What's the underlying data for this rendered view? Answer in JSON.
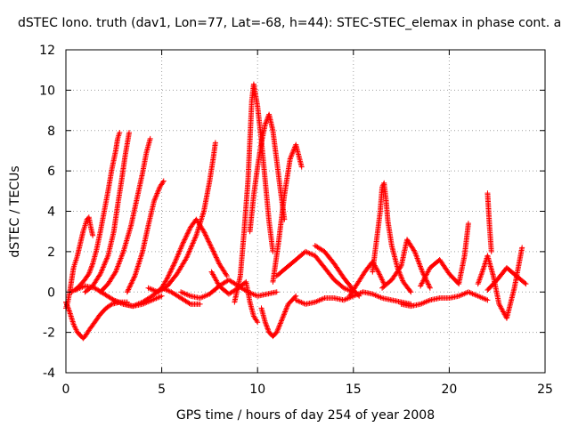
{
  "chart_data": {
    "type": "scatter",
    "title": "dSTEC Iono. truth (dav1, Lon=77, Lat=-68, h=44): STEC-STEC_elemax in phase cont. a",
    "xlabel": "GPS time / hours of day 254 of year 2008",
    "ylabel": "dSTEC  / TECUs",
    "xlim": [
      0,
      25
    ],
    "ylim": [
      -4,
      12
    ],
    "xticks": [
      0,
      5,
      10,
      15,
      20,
      25
    ],
    "yticks": [
      -4,
      -2,
      0,
      2,
      4,
      6,
      8,
      10,
      12
    ],
    "grid": true,
    "legend": "none",
    "marker": "plus",
    "series_color": "#ff0000",
    "tracks": [
      {
        "x": [
          0.0,
          0.2,
          0.4,
          0.6,
          0.8,
          0.9,
          1.0,
          1.2,
          1.5,
          1.8,
          2.1,
          2.4,
          2.8,
          3.2
        ],
        "y": [
          -0.5,
          -1.0,
          -1.6,
          -2.0,
          -2.2,
          -2.3,
          -2.2,
          -1.9,
          -1.5,
          -1.1,
          -0.8,
          -0.6,
          -0.5,
          -0.5
        ]
      },
      {
        "x": [
          0.0,
          0.1,
          0.2,
          0.3,
          0.4,
          0.5,
          0.6,
          0.7,
          0.8,
          0.9,
          1.0,
          1.1,
          1.2,
          1.3,
          1.4
        ],
        "y": [
          -0.8,
          -0.5,
          0.0,
          0.6,
          1.2,
          1.5,
          1.8,
          2.2,
          2.6,
          3.0,
          3.3,
          3.6,
          3.7,
          3.2,
          2.8
        ]
      },
      {
        "x": [
          0.3,
          0.6,
          0.9,
          1.2,
          1.4,
          1.6,
          1.8,
          2.0,
          2.2,
          2.4,
          2.6,
          2.7,
          2.8
        ],
        "y": [
          0.0,
          0.2,
          0.5,
          0.9,
          1.4,
          2.1,
          3.0,
          4.0,
          5.0,
          6.1,
          7.0,
          7.6,
          7.9
        ]
      },
      {
        "x": [
          1.0,
          1.4,
          1.8,
          2.2,
          2.5,
          2.7,
          2.9,
          3.1,
          3.3
        ],
        "y": [
          0.0,
          0.3,
          0.9,
          1.8,
          3.0,
          4.3,
          5.5,
          6.8,
          7.9
        ]
      },
      {
        "x": [
          1.8,
          2.2,
          2.6,
          3.0,
          3.4,
          3.7,
          4.0,
          4.2,
          4.4
        ],
        "y": [
          0.0,
          0.4,
          1.0,
          2.0,
          3.3,
          4.6,
          5.9,
          6.9,
          7.6
        ]
      },
      {
        "x": [
          0.5,
          1.0,
          1.5,
          2.0,
          2.5,
          3.0,
          3.5,
          4.0,
          4.5,
          5.0
        ],
        "y": [
          0.1,
          0.3,
          0.2,
          -0.1,
          -0.4,
          -0.6,
          -0.7,
          -0.6,
          -0.4,
          -0.2
        ]
      },
      {
        "x": [
          3.2,
          3.6,
          4.0,
          4.3,
          4.6,
          4.9,
          5.1
        ],
        "y": [
          0.0,
          0.8,
          2.0,
          3.3,
          4.5,
          5.2,
          5.5
        ]
      },
      {
        "x": [
          2.5,
          3.0,
          3.5,
          4.0,
          4.5,
          5.0,
          5.5,
          6.0,
          6.5,
          7.0
        ],
        "y": [
          -0.4,
          -0.6,
          -0.7,
          -0.5,
          -0.2,
          0.2,
          0.0,
          -0.3,
          -0.6,
          -0.6
        ]
      },
      {
        "x": [
          4.3,
          4.8,
          5.3,
          5.8,
          6.3,
          6.8,
          7.2,
          7.5,
          7.7,
          7.8
        ],
        "y": [
          0.2,
          0.0,
          0.3,
          0.9,
          1.7,
          2.8,
          4.0,
          5.5,
          6.7,
          7.4
        ]
      },
      {
        "x": [
          5.0,
          5.3,
          5.7,
          6.1,
          6.5,
          6.8,
          7.2,
          7.6,
          8.0,
          8.4
        ],
        "y": [
          0.2,
          0.7,
          1.5,
          2.4,
          3.2,
          3.6,
          3.0,
          2.2,
          1.4,
          0.8
        ]
      },
      {
        "x": [
          6.0,
          6.5,
          7.0,
          7.5,
          8.0,
          8.5,
          9.0,
          9.5,
          10.0,
          10.5,
          11.0
        ],
        "y": [
          0.0,
          -0.2,
          -0.3,
          -0.1,
          0.3,
          0.6,
          0.3,
          0.0,
          -0.2,
          -0.1,
          0.0
        ]
      },
      {
        "x": [
          7.6,
          8.0,
          8.5,
          9.0,
          9.4,
          9.6,
          9.8,
          10.0
        ],
        "y": [
          1.0,
          0.3,
          -0.1,
          0.2,
          0.5,
          -0.5,
          -1.2,
          -1.5
        ]
      },
      {
        "x": [
          8.8,
          9.1,
          9.3,
          9.5,
          9.6,
          9.7,
          9.8,
          10.0,
          10.2,
          10.4,
          10.6,
          10.8
        ],
        "y": [
          -0.5,
          0.8,
          3.0,
          5.5,
          7.5,
          9.5,
          10.3,
          9.2,
          7.5,
          5.5,
          3.5,
          2.0
        ]
      },
      {
        "x": [
          9.6,
          9.8,
          10.0,
          10.2,
          10.4,
          10.6,
          10.8,
          11.0,
          11.2,
          11.4
        ],
        "y": [
          3.0,
          4.8,
          6.2,
          7.4,
          8.3,
          8.8,
          8.0,
          6.5,
          5.0,
          3.6
        ]
      },
      {
        "x": [
          10.2,
          10.4,
          10.6,
          10.8,
          11.0,
          11.3,
          11.6,
          12.0
        ],
        "y": [
          -0.8,
          -1.5,
          -2.0,
          -2.2,
          -2.0,
          -1.3,
          -0.6,
          -0.2
        ]
      },
      {
        "x": [
          10.8,
          11.1,
          11.4,
          11.7,
          12.0,
          12.3
        ],
        "y": [
          0.5,
          2.5,
          4.8,
          6.6,
          7.3,
          6.2
        ]
      },
      {
        "x": [
          11.0,
          11.5,
          12.0,
          12.5,
          13.0,
          13.5,
          14.0,
          14.5,
          15.0
        ],
        "y": [
          0.8,
          1.2,
          1.6,
          2.0,
          1.8,
          1.2,
          0.6,
          0.2,
          0.0
        ]
      },
      {
        "x": [
          12.0,
          12.5,
          13.0,
          13.5,
          14.0,
          14.5,
          15.0,
          15.5,
          16.0,
          16.5,
          17.0,
          17.5,
          18.0
        ],
        "y": [
          -0.4,
          -0.6,
          -0.5,
          -0.3,
          -0.3,
          -0.4,
          -0.2,
          0.0,
          -0.1,
          -0.3,
          -0.4,
          -0.5,
          -0.6
        ]
      },
      {
        "x": [
          13.0,
          13.5,
          14.0,
          14.5,
          15.0,
          15.3
        ],
        "y": [
          2.3,
          2.0,
          1.4,
          0.7,
          0.1,
          -0.2
        ]
      },
      {
        "x": [
          14.8,
          15.2,
          15.6,
          16.0,
          16.3,
          16.6
        ],
        "y": [
          -0.2,
          0.4,
          1.0,
          1.5,
          1.0,
          0.4
        ]
      },
      {
        "x": [
          16.0,
          16.2,
          16.4,
          16.5,
          16.6,
          16.7,
          16.8,
          17.0,
          17.3,
          17.6,
          18.0
        ],
        "y": [
          1.0,
          2.5,
          4.0,
          5.2,
          5.4,
          4.6,
          3.5,
          2.3,
          1.2,
          0.5,
          0.0
        ]
      },
      {
        "x": [
          16.5,
          17.0,
          17.5,
          17.8,
          18.2,
          18.6,
          19.0
        ],
        "y": [
          0.2,
          0.6,
          1.3,
          2.6,
          2.0,
          1.0,
          0.2
        ]
      },
      {
        "x": [
          17.5,
          18.0,
          18.5,
          19.0,
          19.5,
          20.0,
          20.5,
          21.0,
          21.5,
          22.0
        ],
        "y": [
          -0.6,
          -0.7,
          -0.6,
          -0.4,
          -0.3,
          -0.3,
          -0.2,
          0.0,
          -0.2,
          -0.4
        ]
      },
      {
        "x": [
          18.5,
          19.0,
          19.5,
          20.0,
          20.5,
          20.8,
          21.0
        ],
        "y": [
          0.3,
          1.2,
          1.6,
          0.9,
          0.4,
          1.8,
          3.4
        ]
      },
      {
        "x": [
          21.5,
          21.8,
          22.0,
          22.3,
          22.6,
          23.0,
          23.4,
          23.8
        ],
        "y": [
          0.4,
          1.2,
          1.8,
          0.8,
          -0.6,
          -1.3,
          0.2,
          2.2
        ]
      },
      {
        "x": [
          22.0,
          22.5,
          23.0,
          23.5,
          24.0
        ],
        "y": [
          0.1,
          0.6,
          1.2,
          0.8,
          0.4
        ]
      },
      {
        "x": [
          22.0,
          22.1,
          22.2
        ],
        "y": [
          4.9,
          3.3,
          2.0
        ]
      }
    ]
  }
}
